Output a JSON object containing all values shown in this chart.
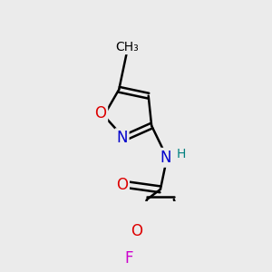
{
  "bg_color": "#ebebeb",
  "atom_colors": {
    "C": "#000000",
    "N": "#0000cc",
    "O": "#dd0000",
    "F": "#cc00cc",
    "H": "#008080"
  },
  "bond_color": "#000000",
  "bond_width": 1.8,
  "font_size": 12,
  "fig_size": [
    3.0,
    3.0
  ],
  "dpi": 100
}
